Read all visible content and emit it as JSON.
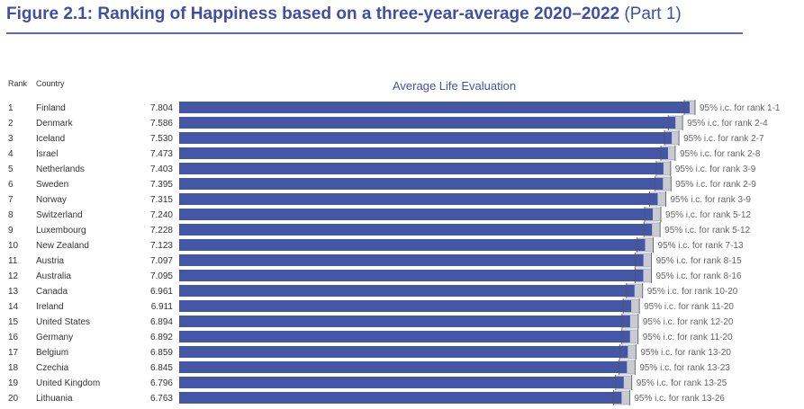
{
  "figure": {
    "title_main": "Figure 2.1: Ranking of Happiness based on a three-year-average 2020–2022",
    "title_part": "(Part 1)",
    "header_rank": "Rank",
    "header_country": "Country",
    "chart_title": "Average Life Evaluation"
  },
  "colors": {
    "bar": "#4457a6",
    "ci_box": "#c9cbd2",
    "title": "#3f4fa5"
  },
  "chart_data": {
    "type": "bar",
    "orientation": "horizontal",
    "title": "Average Life Evaluation",
    "categories": [
      "Finland",
      "Denmark",
      "Iceland",
      "Israel",
      "Netherlands",
      "Sweden",
      "Norway",
      "Switzerland",
      "Luxembourg",
      "New Zealand",
      "Austria",
      "Australia",
      "Canada",
      "Ireland",
      "United States",
      "Germany",
      "Belgium",
      "Czechia",
      "United Kingdom",
      "Lithuania"
    ],
    "ranks": [
      1,
      2,
      3,
      4,
      5,
      6,
      7,
      8,
      9,
      10,
      11,
      12,
      13,
      14,
      15,
      16,
      17,
      18,
      19,
      20
    ],
    "values": [
      7.804,
      7.586,
      7.53,
      7.473,
      7.403,
      7.395,
      7.315,
      7.24,
      7.228,
      7.123,
      7.097,
      7.095,
      6.961,
      6.911,
      6.894,
      6.892,
      6.859,
      6.845,
      6.796,
      6.763
    ],
    "value_labels": [
      "7.804",
      "7.586",
      "7.530",
      "7.473",
      "7.403",
      "7.395",
      "7.315",
      "7.240",
      "7.228",
      "7.123",
      "7.097",
      "7.095",
      "6.961",
      "6.911",
      "6.894",
      "6.892",
      "6.859",
      "6.845",
      "6.796",
      "6.763"
    ],
    "ci_labels": [
      "95% i.c. for rank 1-1",
      "95% i.c. for rank 2-4",
      "95% i.c. for rank 2-7",
      "95% i.c. for rank 2-8",
      "95% i.c. for rank 3-9",
      "95% i.c. for rank 2-9",
      "95% i.c. for rank 3-9",
      "95% i.c. for rank 5-12",
      "95% i.c. for rank 5-12",
      "95% i.c. for rank 7-13",
      "95% i.c. for rank 8-15",
      "95% i.c. for rank 8-16",
      "95% i.c. for rank 10-20",
      "95% i.c. for rank 11-20",
      "95% i.c. for rank 12-20",
      "95% i.c. for rank 11-20",
      "95% i.c. for rank 13-20",
      "95% i.c. for rank 13-23",
      "95% i.c. for rank 13-25",
      "95% i.c. for rank 13-26"
    ],
    "xlim": [
      0,
      7.804
    ],
    "grid": false
  }
}
